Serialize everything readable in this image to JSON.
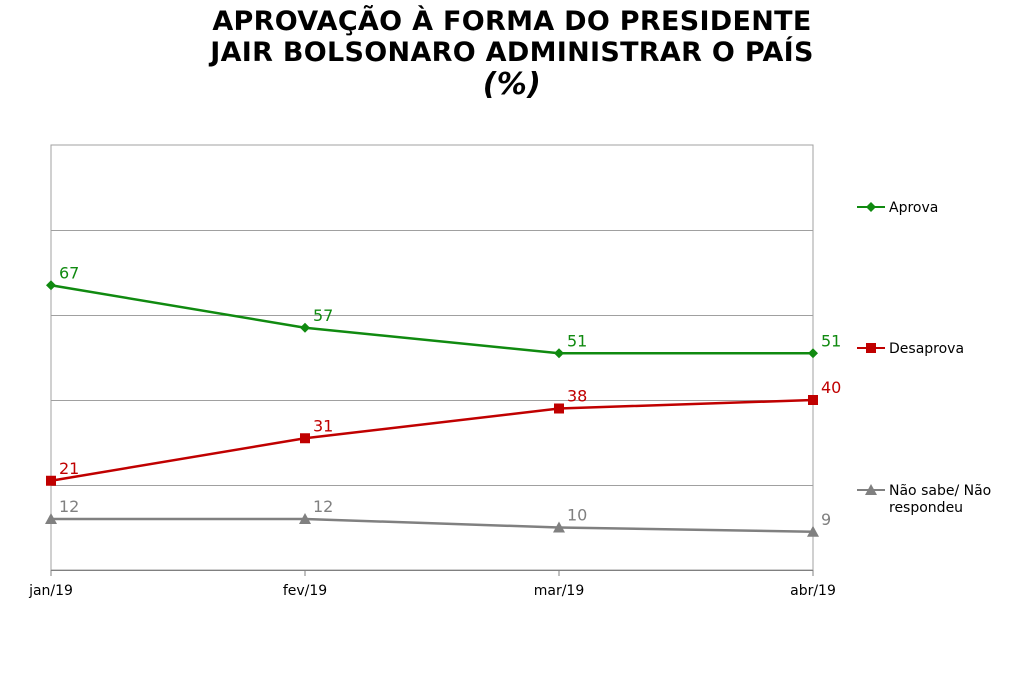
{
  "chart_data": {
    "type": "line",
    "title_lines": [
      "APROVAÇÃO À FORMA DO PRESIDENTE",
      "JAIR BOLSONARO ADMINISTRAR O PAÍS"
    ],
    "title_unit": "(%)",
    "categories": [
      "jan/19",
      "fev/19",
      "mar/19",
      "abr/19"
    ],
    "ylim": [
      0,
      100
    ],
    "grid": true,
    "legend_position": "right",
    "series": [
      {
        "name": "Aprova",
        "values": [
          67,
          57,
          51,
          51
        ],
        "color": "#108a10",
        "marker": "diamond"
      },
      {
        "name": "Desaprova",
        "values": [
          21,
          31,
          38,
          40
        ],
        "color": "#c00000",
        "marker": "square"
      },
      {
        "name": "Não sabe/ Não respondeu",
        "legend_lines": [
          "Não sabe/ Não",
          "respondeu"
        ],
        "values": [
          12,
          12,
          10,
          9
        ],
        "color": "#808080",
        "marker": "triangle"
      }
    ]
  }
}
